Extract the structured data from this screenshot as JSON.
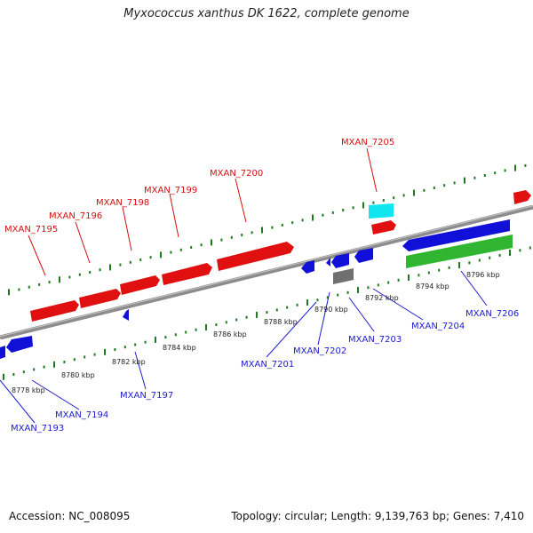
{
  "title": "Myxococcus xanthus DK 1622, complete genome",
  "footer": {
    "accession": "Accession: NC_008095",
    "summary": "Topology: circular; Length: 9,139,763 bp; Genes: 7,410"
  },
  "colors": {
    "forward_gene": "#e01010",
    "reverse_gene": "#1010d8",
    "green_feature": "#2fb52f",
    "cyan_feature": "#10e6f0",
    "gray_feature": "#707070",
    "tick_mark": "#1f7a1f",
    "backbone": "#8c8c8c"
  },
  "kbp_ticks": [
    "8778 kbp",
    "8780 kbp",
    "8782 kbp",
    "8784 kbp",
    "8786 kbp",
    "8788 kbp",
    "8790 kbp",
    "8792 kbp",
    "8794 kbp",
    "8796 kbp"
  ],
  "gene_labels_top": [
    "MXAN_7195",
    "MXAN_7196",
    "MXAN_7198",
    "MXAN_7199",
    "MXAN_7200",
    "MXAN_7205"
  ],
  "gene_labels_bottom": [
    "MXAN_7193",
    "MXAN_7194",
    "MXAN_7197",
    "MXAN_7201",
    "MXAN_7202",
    "MXAN_7203",
    "MXAN_7204",
    "MXAN_7206"
  ]
}
